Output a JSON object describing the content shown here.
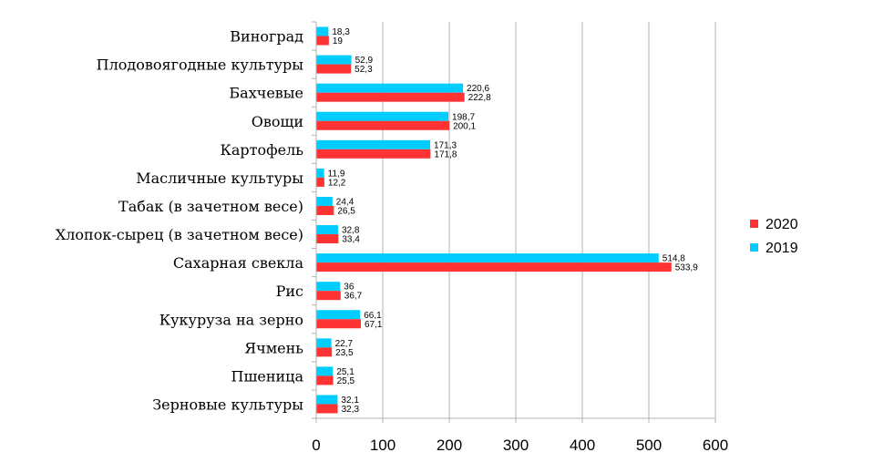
{
  "chart_data": {
    "type": "bar",
    "orientation": "horizontal",
    "categories": [
      "Виноград",
      "Плодовоягодные культуры",
      "Бахчевые",
      "Овощи",
      "Картофель",
      "Масличные культуры",
      "Табак (в зачетном весе)",
      "Хлопок-сырец (в зачетном весе)",
      "Сахарная свекла",
      "Рис",
      "Кукуруза на зерно",
      "Ячмень",
      "Пшеница",
      "Зерновые культуры"
    ],
    "series": [
      {
        "name": "2019",
        "color": "#00ccff",
        "values": [
          18.3,
          52.9,
          220.6,
          198.7,
          171.3,
          11.9,
          24.4,
          32.8,
          514.8,
          36,
          66.1,
          22.7,
          25.1,
          32.1
        ],
        "labels": [
          "18,3",
          "52,9",
          "220,6",
          "198,7",
          "171,3",
          "11,9",
          "24,4",
          "32,8",
          "514,8",
          "36",
          "66,1",
          "22,7",
          "25,1",
          "32,1"
        ]
      },
      {
        "name": "2020",
        "color": "#ff3333",
        "values": [
          19,
          52.3,
          222.8,
          200.1,
          171.8,
          12.2,
          26.5,
          33.4,
          533.9,
          36.7,
          67.1,
          23.5,
          25.5,
          32.3
        ],
        "labels": [
          "19",
          "52,3",
          "222,8",
          "200,1",
          "171,8",
          "12,2",
          "26,5",
          "33,4",
          "533,9",
          "36,7",
          "67,1",
          "23,5",
          "25,5",
          "32,3"
        ]
      }
    ],
    "xlim": [
      0,
      600
    ],
    "xticks": [
      "0",
      "100",
      "200",
      "300",
      "400",
      "500",
      "600"
    ],
    "grid": true,
    "legend": {
      "placement": "right",
      "entries": [
        {
          "name": "2020",
          "color": "#ff3333"
        },
        {
          "name": "2019",
          "color": "#00ccff"
        }
      ]
    }
  }
}
